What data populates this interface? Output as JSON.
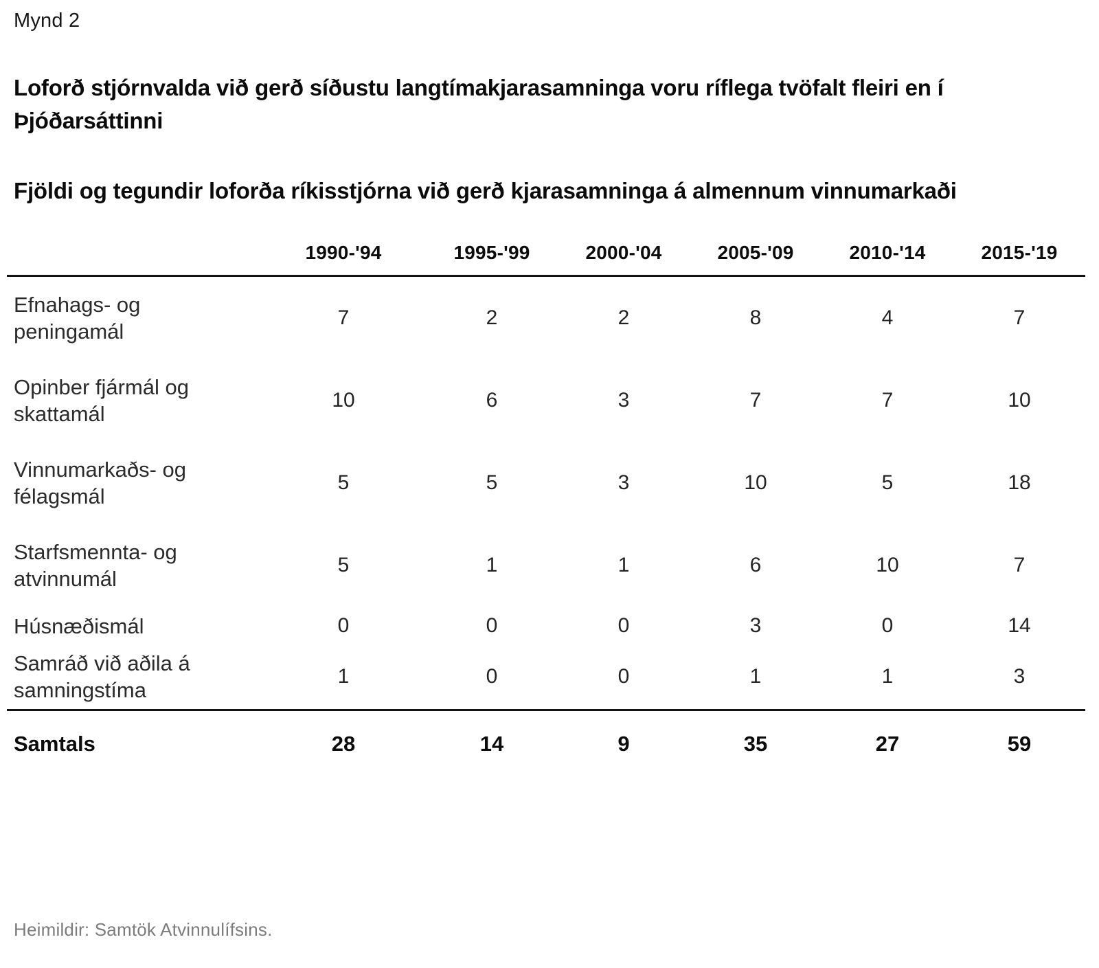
{
  "figure_label": "Mynd 2",
  "headline": "Loforð stjórnvalda við gerð síðustu langtímakjarasamninga voru ríflega tvöfalt fleiri en í Þjóðarsáttinni",
  "subtitle": "Fjöldi og tegundir loforða ríkisstjórna við gerð kjarasamninga á almennum vinnumarkaði",
  "source_note": "Heimildir: Samtök Atvinnulífsins.",
  "colors": {
    "background": "#ffffff",
    "text": "#0b0b0b",
    "rule": "#141414",
    "muted": "#7c7c7c"
  },
  "chart_data": {
    "type": "table",
    "title": "Loforð stjórnvalda við gerð síðustu langtímakjarasamninga voru ríflega tvöfalt fleiri en í Þjóðarsáttinni",
    "subtitle": "Fjöldi og tegundir loforða ríkisstjórna við gerð kjarasamninga á almennum vinnumarkaði",
    "categories": [
      "1990-'94",
      "1995-'99",
      "2000-'04",
      "2005-'09",
      "2010-'14",
      "2015-'19"
    ],
    "series": [
      {
        "name": "Efnahags- og peningamál",
        "values": [
          7,
          2,
          2,
          8,
          4,
          7
        ]
      },
      {
        "name": "Opinber fjármál og skattamál",
        "values": [
          10,
          6,
          3,
          7,
          7,
          10
        ]
      },
      {
        "name": "Vinnumarkaðs- og félagsmál",
        "values": [
          5,
          5,
          3,
          10,
          5,
          18
        ]
      },
      {
        "name": "Starfsmennta- og atvinnumál",
        "values": [
          5,
          1,
          1,
          6,
          10,
          7
        ]
      },
      {
        "name": "Húsnæðismál",
        "values": [
          0,
          0,
          0,
          3,
          0,
          14
        ]
      },
      {
        "name": "Samráð við aðila á samningstíma",
        "values": [
          1,
          0,
          0,
          1,
          1,
          3
        ]
      }
    ],
    "total": {
      "name": "Samtals",
      "values": [
        28,
        14,
        9,
        35,
        27,
        59
      ]
    },
    "legend_position": "none",
    "grid": "horizontal-rules-only"
  }
}
